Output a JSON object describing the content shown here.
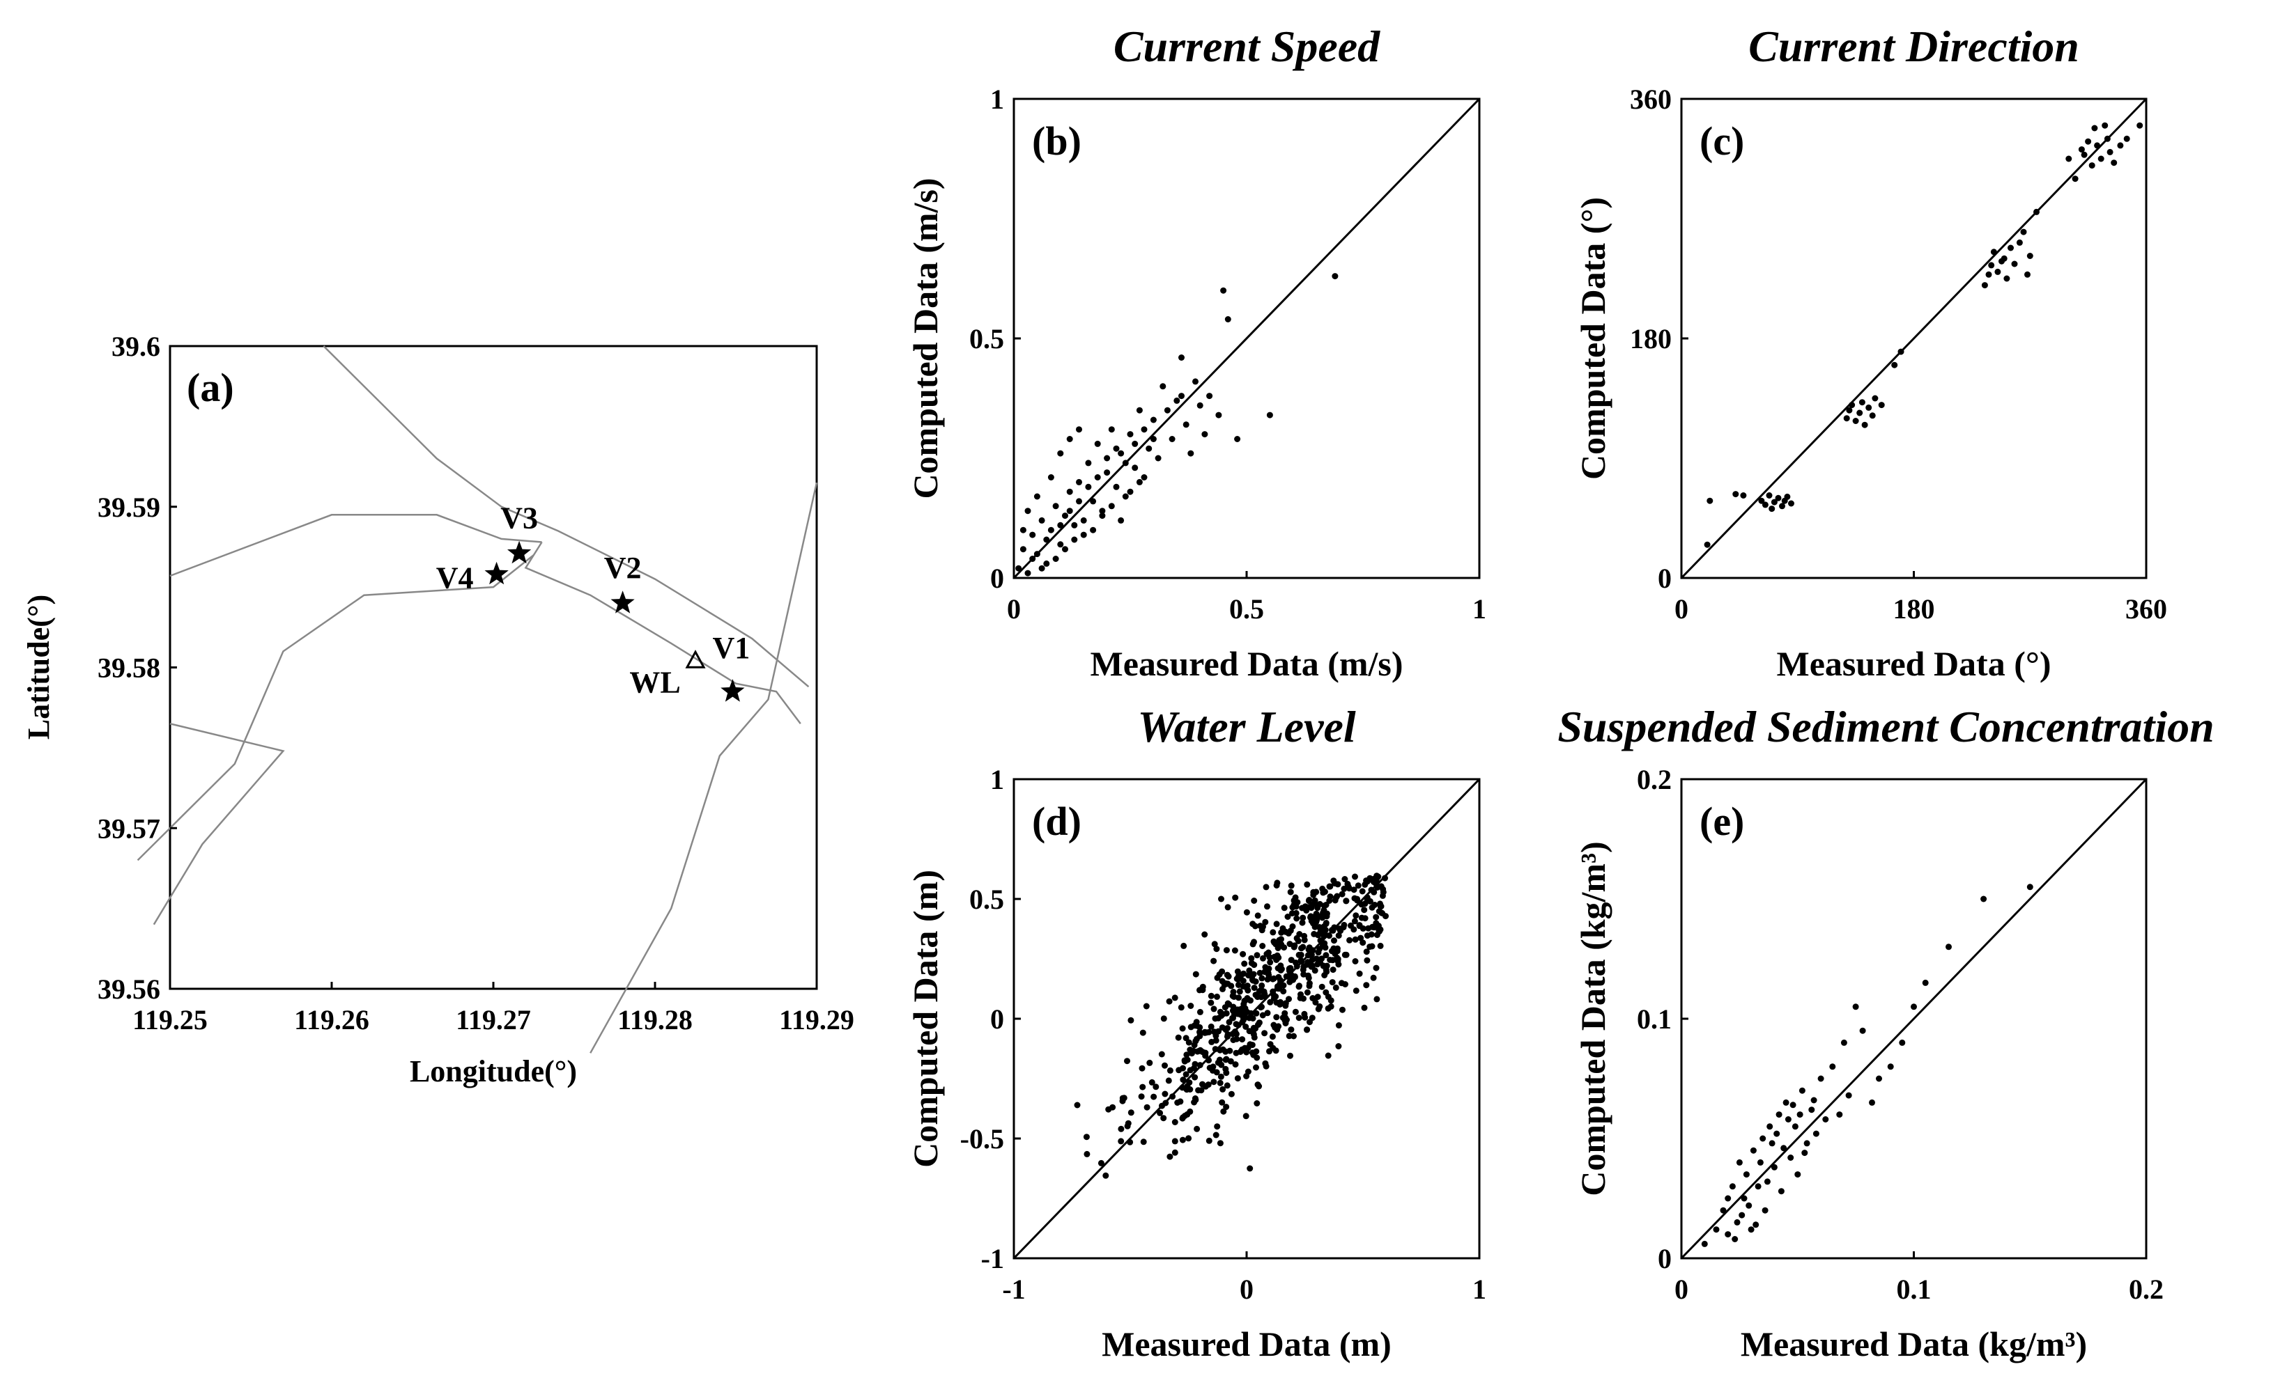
{
  "map": {
    "panel_label": "(a)",
    "xlabel": "Longitude(°)",
    "ylabel": "Latitude(°)",
    "x_ticks": [
      "119.25",
      "119.26",
      "119.27",
      "119.28",
      "119.29"
    ],
    "y_ticks": [
      "39.6",
      "39.59",
      "39.58",
      "39.57",
      "39.56"
    ],
    "xlim": [
      119.25,
      119.29
    ],
    "ylim": [
      39.56,
      39.6
    ],
    "stations": [
      {
        "name": "V1",
        "lon": 119.2848,
        "lat": 39.5785,
        "marker": "star"
      },
      {
        "name": "V2",
        "lon": 119.278,
        "lat": 39.584,
        "marker": "star"
      },
      {
        "name": "V3",
        "lon": 119.2716,
        "lat": 39.5871,
        "marker": "star"
      },
      {
        "name": "V4",
        "lon": 119.2702,
        "lat": 39.5858,
        "marker": "star"
      },
      {
        "name": "WL",
        "lon": 119.2825,
        "lat": 39.5804,
        "marker": "triangle"
      }
    ],
    "coastlines": [
      [
        [
          119.2595,
          39.6
        ],
        [
          119.2665,
          39.593
        ],
        [
          119.2705,
          39.59
        ],
        [
          119.274,
          39.5885
        ],
        [
          119.28,
          39.5855
        ],
        [
          119.286,
          39.5818
        ],
        [
          119.2895,
          39.5788
        ]
      ],
      [
        [
          119.25,
          39.5857
        ],
        [
          119.26,
          39.5895
        ],
        [
          119.2665,
          39.5895
        ],
        [
          119.2705,
          39.588
        ],
        [
          119.273,
          39.5878
        ]
      ],
      [
        [
          119.273,
          39.5878
        ],
        [
          119.272,
          39.5862
        ],
        [
          119.276,
          39.5845
        ],
        [
          119.281,
          39.5815
        ],
        [
          119.285,
          39.579
        ],
        [
          119.2875,
          39.5785
        ],
        [
          119.289,
          39.5765
        ]
      ],
      [
        [
          119.2725,
          39.587
        ],
        [
          119.27,
          39.585
        ],
        [
          119.262,
          39.5845
        ],
        [
          119.257,
          39.581
        ],
        [
          119.254,
          39.574
        ],
        [
          119.248,
          39.568
        ]
      ],
      [
        [
          119.25,
          39.5765
        ],
        [
          119.257,
          39.5748
        ],
        [
          119.252,
          39.569
        ],
        [
          119.249,
          39.564
        ]
      ],
      [
        [
          119.276,
          39.556
        ],
        [
          119.281,
          39.565
        ],
        [
          119.284,
          39.5745
        ],
        [
          119.287,
          39.578
        ],
        [
          119.29,
          39.5915
        ]
      ]
    ]
  },
  "panels": [
    {
      "id": "b",
      "title": "Current Speed",
      "panel_label": "(b)",
      "xlabel": "Measured Data (m/s)",
      "ylabel": "Computed Data (m/s)",
      "x_ticks": [
        "0",
        "0.5",
        "1"
      ],
      "y_ticks": [
        "0",
        "0.5",
        "1"
      ]
    },
    {
      "id": "c",
      "title": "Current Direction",
      "panel_label": "(c)",
      "xlabel": "Measured Data (°)",
      "ylabel": "Computed Data (°)",
      "x_ticks": [
        "0",
        "180",
        "360"
      ],
      "y_ticks": [
        "0",
        "180",
        "360"
      ]
    },
    {
      "id": "d",
      "title": "Water Level",
      "panel_label": "(d)",
      "xlabel": "Measured Data (m)",
      "ylabel": "Computed Data (m)",
      "x_ticks": [
        "-1",
        "0",
        "1"
      ],
      "y_ticks": [
        "-1",
        "-0.5",
        "0",
        "0.5",
        "1"
      ]
    },
    {
      "id": "e",
      "title": "Suspended Sediment Concentration",
      "panel_label": "(e)",
      "xlabel": "Measured Data (kg/m³)",
      "ylabel": "Computed Data (kg/m³)",
      "x_ticks": [
        "0",
        "0.1",
        "0.2"
      ],
      "y_ticks": [
        "0",
        "0.1",
        "0.2"
      ]
    }
  ],
  "chart_data": [
    {
      "type": "scatter",
      "title": "Current Speed",
      "xlabel": "Measured Data (m/s)",
      "ylabel": "Computed Data (m/s)",
      "xlim": [
        0,
        1
      ],
      "ylim": [
        0,
        1
      ],
      "reference_line": "y = x",
      "points": [
        [
          0.01,
          0.02
        ],
        [
          0.02,
          0.06
        ],
        [
          0.03,
          0.01
        ],
        [
          0.04,
          0.09
        ],
        [
          0.05,
          0.05
        ],
        [
          0.06,
          0.12
        ],
        [
          0.07,
          0.03
        ],
        [
          0.08,
          0.1
        ],
        [
          0.09,
          0.15
        ],
        [
          0.1,
          0.07
        ],
        [
          0.11,
          0.13
        ],
        [
          0.12,
          0.18
        ],
        [
          0.13,
          0.11
        ],
        [
          0.14,
          0.2
        ],
        [
          0.15,
          0.09
        ],
        [
          0.16,
          0.24
        ],
        [
          0.17,
          0.16
        ],
        [
          0.18,
          0.28
        ],
        [
          0.19,
          0.14
        ],
        [
          0.2,
          0.22
        ],
        [
          0.21,
          0.31
        ],
        [
          0.22,
          0.19
        ],
        [
          0.23,
          0.26
        ],
        [
          0.24,
          0.17
        ],
        [
          0.25,
          0.3
        ],
        [
          0.26,
          0.23
        ],
        [
          0.27,
          0.35
        ],
        [
          0.28,
          0.21
        ],
        [
          0.29,
          0.27
        ],
        [
          0.3,
          0.33
        ],
        [
          0.31,
          0.25
        ],
        [
          0.32,
          0.4
        ],
        [
          0.34,
          0.29
        ],
        [
          0.35,
          0.37
        ],
        [
          0.36,
          0.46
        ],
        [
          0.37,
          0.32
        ],
        [
          0.38,
          0.26
        ],
        [
          0.39,
          0.41
        ],
        [
          0.4,
          0.36
        ],
        [
          0.41,
          0.3
        ],
        [
          0.42,
          0.38
        ],
        [
          0.44,
          0.34
        ],
        [
          0.45,
          0.6
        ],
        [
          0.46,
          0.54
        ],
        [
          0.48,
          0.29
        ],
        [
          0.55,
          0.34
        ],
        [
          0.69,
          0.63
        ],
        [
          0.03,
          0.14
        ],
        [
          0.05,
          0.17
        ],
        [
          0.08,
          0.21
        ],
        [
          0.1,
          0.26
        ],
        [
          0.12,
          0.29
        ],
        [
          0.14,
          0.31
        ],
        [
          0.06,
          0.02
        ],
        [
          0.09,
          0.04
        ],
        [
          0.11,
          0.06
        ],
        [
          0.13,
          0.08
        ],
        [
          0.15,
          0.12
        ],
        [
          0.17,
          0.1
        ],
        [
          0.19,
          0.13
        ],
        [
          0.21,
          0.15
        ],
        [
          0.23,
          0.12
        ],
        [
          0.25,
          0.18
        ],
        [
          0.27,
          0.2
        ],
        [
          0.02,
          0.1
        ],
        [
          0.04,
          0.04
        ],
        [
          0.07,
          0.08
        ],
        [
          0.1,
          0.11
        ],
        [
          0.12,
          0.14
        ],
        [
          0.14,
          0.16
        ],
        [
          0.16,
          0.19
        ],
        [
          0.18,
          0.21
        ],
        [
          0.2,
          0.25
        ],
        [
          0.22,
          0.27
        ],
        [
          0.24,
          0.24
        ],
        [
          0.26,
          0.28
        ],
        [
          0.28,
          0.31
        ],
        [
          0.3,
          0.29
        ],
        [
          0.33,
          0.35
        ],
        [
          0.36,
          0.38
        ]
      ]
    },
    {
      "type": "scatter",
      "title": "Current Direction",
      "xlabel": "Measured Data (°)",
      "ylabel": "Computed Data (°)",
      "xlim": [
        0,
        360
      ],
      "ylim": [
        0,
        360
      ],
      "reference_line": "y = x",
      "points": [
        [
          20,
          25
        ],
        [
          22,
          58
        ],
        [
          42,
          63
        ],
        [
          48,
          62
        ],
        [
          62,
          58
        ],
        [
          65,
          55
        ],
        [
          68,
          62
        ],
        [
          70,
          52
        ],
        [
          72,
          57
        ],
        [
          75,
          60
        ],
        [
          78,
          54
        ],
        [
          80,
          58
        ],
        [
          82,
          61
        ],
        [
          85,
          56
        ],
        [
          128,
          120
        ],
        [
          130,
          126
        ],
        [
          132,
          130
        ],
        [
          135,
          118
        ],
        [
          138,
          124
        ],
        [
          140,
          132
        ],
        [
          142,
          115
        ],
        [
          145,
          128
        ],
        [
          148,
          122
        ],
        [
          150,
          135
        ],
        [
          155,
          130
        ],
        [
          165,
          160
        ],
        [
          170,
          170
        ],
        [
          235,
          220
        ],
        [
          238,
          228
        ],
        [
          240,
          235
        ],
        [
          242,
          245
        ],
        [
          245,
          230
        ],
        [
          248,
          238
        ],
        [
          250,
          240
        ],
        [
          252,
          225
        ],
        [
          255,
          248
        ],
        [
          258,
          236
        ],
        [
          262,
          252
        ],
        [
          265,
          260
        ],
        [
          268,
          228
        ],
        [
          270,
          242
        ],
        [
          275,
          275
        ],
        [
          300,
          315
        ],
        [
          305,
          300
        ],
        [
          310,
          322
        ],
        [
          312,
          318
        ],
        [
          315,
          328
        ],
        [
          318,
          310
        ],
        [
          320,
          338
        ],
        [
          322,
          325
        ],
        [
          325,
          315
        ],
        [
          328,
          340
        ],
        [
          330,
          330
        ],
        [
          332,
          320
        ],
        [
          335,
          312
        ],
        [
          340,
          325
        ],
        [
          345,
          330
        ],
        [
          355,
          340
        ]
      ]
    },
    {
      "type": "scatter",
      "title": "Water Level",
      "xlabel": "Measured Data (m)",
      "ylabel": "Computed Data (m)",
      "xlim": [
        -1,
        1
      ],
      "ylim": [
        -1,
        1
      ],
      "reference_line": "y = x",
      "points_description_generated": true,
      "n_points": 700
    },
    {
      "type": "scatter",
      "title": "Suspended Sediment Concentration",
      "xlabel": "Measured Data (kg/m³)",
      "ylabel": "Computed Data (kg/m³)",
      "xlim": [
        0,
        0.2
      ],
      "ylim": [
        0,
        0.2
      ],
      "reference_line": "y = x",
      "points": [
        [
          0.01,
          0.006
        ],
        [
          0.015,
          0.012
        ],
        [
          0.018,
          0.02
        ],
        [
          0.02,
          0.01
        ],
        [
          0.022,
          0.03
        ],
        [
          0.024,
          0.015
        ],
        [
          0.025,
          0.04
        ],
        [
          0.027,
          0.025
        ],
        [
          0.028,
          0.035
        ],
        [
          0.03,
          0.012
        ],
        [
          0.031,
          0.045
        ],
        [
          0.033,
          0.03
        ],
        [
          0.035,
          0.05
        ],
        [
          0.036,
          0.02
        ],
        [
          0.038,
          0.055
        ],
        [
          0.04,
          0.038
        ],
        [
          0.042,
          0.06
        ],
        [
          0.043,
          0.028
        ],
        [
          0.045,
          0.065
        ],
        [
          0.047,
          0.042
        ],
        [
          0.049,
          0.055
        ],
        [
          0.05,
          0.035
        ],
        [
          0.052,
          0.07
        ],
        [
          0.054,
          0.048
        ],
        [
          0.056,
          0.062
        ],
        [
          0.058,
          0.052
        ],
        [
          0.06,
          0.075
        ],
        [
          0.062,
          0.058
        ],
        [
          0.065,
          0.08
        ],
        [
          0.068,
          0.06
        ],
        [
          0.07,
          0.09
        ],
        [
          0.072,
          0.068
        ],
        [
          0.075,
          0.105
        ],
        [
          0.078,
          0.095
        ],
        [
          0.082,
          0.065
        ],
        [
          0.085,
          0.075
        ],
        [
          0.09,
          0.08
        ],
        [
          0.095,
          0.09
        ],
        [
          0.1,
          0.105
        ],
        [
          0.105,
          0.115
        ],
        [
          0.115,
          0.13
        ],
        [
          0.13,
          0.15
        ],
        [
          0.15,
          0.155
        ],
        [
          0.02,
          0.025
        ],
        [
          0.023,
          0.008
        ],
        [
          0.026,
          0.018
        ],
        [
          0.029,
          0.022
        ],
        [
          0.032,
          0.014
        ],
        [
          0.034,
          0.04
        ],
        [
          0.037,
          0.032
        ],
        [
          0.039,
          0.048
        ],
        [
          0.041,
          0.052
        ],
        [
          0.044,
          0.046
        ],
        [
          0.046,
          0.058
        ],
        [
          0.048,
          0.064
        ],
        [
          0.051,
          0.06
        ],
        [
          0.053,
          0.044
        ],
        [
          0.057,
          0.066
        ]
      ]
    }
  ]
}
